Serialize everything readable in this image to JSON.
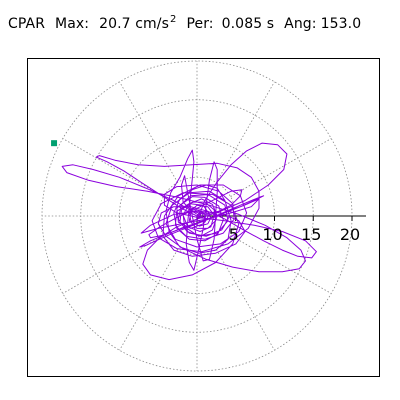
{
  "header": {
    "station": "CPAR",
    "max_label": "Max:",
    "max_value": "20.7 cm/s",
    "max_exp": "2",
    "per_label": "Per:",
    "per_value": "0.085 s",
    "ang_label": "Ang:",
    "ang_value": "153.0"
  },
  "chart_data": {
    "type": "line",
    "subtype": "polar-hodogram",
    "title": "CPAR  Max: 20.7 cm/s2  Per: 0.085 s  Ang: 153.0",
    "max_amplitude": 20.7,
    "period_s": 0.085,
    "angle_deg": 153.0,
    "rings": [
      5,
      10,
      15,
      20
    ],
    "tick_labels": [
      "5",
      "10",
      "15",
      "20"
    ],
    "radial_spokes_deg": [
      0,
      30,
      60,
      90,
      120,
      150,
      180,
      210,
      240,
      270,
      300,
      330
    ],
    "r_max": 20,
    "grid": true,
    "max_marker": {
      "r": 20.7,
      "angle_deg": 153.0
    },
    "colors": {
      "trace": "#8b00dd",
      "marker": "#00a070",
      "grid": "#888888",
      "axis": "#000000"
    },
    "series": [
      {
        "points": [
          [
            0,
            0
          ],
          [
            0.5,
            0.3
          ],
          [
            1.2,
            0.4
          ],
          [
            1.8,
            -0.2
          ],
          [
            1.4,
            -1
          ],
          [
            0.3,
            -1.3
          ],
          [
            -0.8,
            -0.6
          ],
          [
            -1,
            0.5
          ],
          [
            0,
            1.4
          ],
          [
            1.4,
            1.2
          ],
          [
            2.2,
            0.1
          ],
          [
            1.8,
            -1.4
          ],
          [
            0.4,
            -2
          ],
          [
            -1.2,
            -1.4
          ],
          [
            -1.8,
            0.1
          ],
          [
            -1,
            1.6
          ],
          [
            0.6,
            2.2
          ],
          [
            2,
            1.5
          ],
          [
            2.6,
            0
          ],
          [
            2,
            -1.8
          ],
          [
            0.5,
            -2.6
          ],
          [
            -1.3,
            -2
          ],
          [
            -2.4,
            -0.4
          ],
          [
            -2,
            1.5
          ],
          [
            -0.6,
            2.5
          ],
          [
            1,
            2.4
          ],
          [
            2.8,
            1.3
          ],
          [
            3.4,
            -0.5
          ],
          [
            2.7,
            -2.3
          ],
          [
            1,
            -3.2
          ],
          [
            -1,
            -3
          ],
          [
            -2.6,
            -1.6
          ],
          [
            -3,
            0.4
          ],
          [
            -2.2,
            2.2
          ],
          [
            -0.6,
            3.4
          ],
          [
            1.2,
            4
          ],
          [
            2.6,
            3.6
          ],
          [
            3.6,
            2
          ],
          [
            4.4,
            -0.6
          ],
          [
            4,
            -3
          ],
          [
            2.4,
            -4.4
          ],
          [
            0.2,
            -4.8
          ],
          [
            -2.2,
            -4
          ],
          [
            -3.6,
            -2
          ],
          [
            -4,
            0.6
          ],
          [
            -3.4,
            3
          ],
          [
            -2.2,
            5
          ],
          [
            -1.2,
            7.4
          ],
          [
            -0.6,
            8.5
          ],
          [
            -0.4,
            7
          ],
          [
            -0.6,
            4.8
          ],
          [
            -0.9,
            2
          ],
          [
            -1.2,
            -0.8
          ],
          [
            -1.4,
            -3.6
          ],
          [
            -1,
            -6
          ],
          [
            -0.4,
            -7
          ],
          [
            0.2,
            -4.4
          ],
          [
            0.8,
            -1.6
          ],
          [
            1.2,
            1.6
          ],
          [
            1.6,
            4.6
          ],
          [
            2.2,
            7
          ],
          [
            2.6,
            6
          ],
          [
            2.6,
            3
          ],
          [
            2.4,
            0.2
          ],
          [
            2.2,
            -3
          ],
          [
            1.6,
            -5.6
          ],
          [
            0.8,
            -5.8
          ],
          [
            0,
            -3
          ],
          [
            -0.6,
            0
          ],
          [
            -1.2,
            3
          ],
          [
            -1.6,
            5.2
          ],
          [
            -2,
            4
          ],
          [
            -1.8,
            1.8
          ],
          [
            -0.6,
            0.6
          ],
          [
            1,
            0.2
          ],
          [
            2.8,
            0.6
          ],
          [
            4.4,
            1.4
          ],
          [
            5.6,
            2.6
          ],
          [
            5.8,
            3.4
          ],
          [
            4.4,
            3.2
          ],
          [
            2.4,
            2.2
          ],
          [
            0,
            1
          ],
          [
            -2.6,
            -0.2
          ],
          [
            -4.8,
            -1.4
          ],
          [
            -6.2,
            -2.4
          ],
          [
            -6,
            -2.8
          ],
          [
            -4,
            -2.4
          ],
          [
            -1.6,
            -1.4
          ],
          [
            1,
            -0.6
          ],
          [
            3.4,
            0.4
          ],
          [
            5.6,
            1.2
          ],
          [
            7.4,
            2
          ],
          [
            8.6,
            2.6
          ],
          [
            8,
            2.4
          ],
          [
            5.6,
            1.4
          ],
          [
            2.4,
            0
          ],
          [
            -0.8,
            -1.2
          ],
          [
            -3.6,
            -2.2
          ],
          [
            -6,
            -3.2
          ],
          [
            -7.4,
            -4
          ],
          [
            -6.6,
            -3.8
          ],
          [
            -4,
            -2.6
          ],
          [
            -1,
            -1.4
          ],
          [
            2,
            -0.2
          ],
          [
            4.6,
            0.8
          ],
          [
            6.6,
            1.6
          ],
          [
            8,
            2.2
          ],
          [
            7,
            1.2
          ],
          [
            4.4,
            0.4
          ],
          [
            1.2,
            -0.4
          ],
          [
            -2,
            -1
          ],
          [
            -5,
            -1.6
          ],
          [
            -7.2,
            -2.2
          ],
          [
            -6,
            -1.2
          ],
          [
            -3,
            0.2
          ],
          [
            0,
            0.6
          ],
          [
            3,
            0.4
          ],
          [
            5.4,
            -0.6
          ],
          [
            6.2,
            -2
          ],
          [
            5,
            -3.6
          ],
          [
            2.4,
            -4.8
          ],
          [
            -0.6,
            -5.2
          ],
          [
            -3,
            -4.4
          ],
          [
            -4.4,
            -2.6
          ],
          [
            -4.2,
            0
          ],
          [
            -2.4,
            2.6
          ],
          [
            0.4,
            4
          ],
          [
            3.4,
            4
          ],
          [
            5.6,
            2.6
          ],
          [
            6.4,
            0.4
          ],
          [
            5.4,
            -2
          ],
          [
            3,
            -3.6
          ],
          [
            0,
            -4
          ],
          [
            -2.8,
            -3
          ],
          [
            -4,
            -1
          ],
          [
            -3.2,
            1.4
          ],
          [
            -1,
            3
          ],
          [
            1.6,
            3.2
          ],
          [
            3.6,
            2
          ],
          [
            4.2,
            0
          ],
          [
            3.2,
            -1.8
          ],
          [
            1.2,
            -2.6
          ],
          [
            -1,
            -2.2
          ],
          [
            -2.2,
            -0.8
          ],
          [
            -2,
            0.8
          ],
          [
            -0.6,
            1.8
          ],
          [
            1,
            1.8
          ],
          [
            2.2,
            0.8
          ],
          [
            2.4,
            -0.6
          ],
          [
            1.4,
            -1.6
          ],
          [
            0,
            -1.6
          ],
          [
            -1,
            -0.6
          ],
          [
            -0.8,
            0.4
          ],
          [
            0,
            0.8
          ],
          [
            0.8,
            0.4
          ],
          [
            0.6,
            -0.2
          ],
          [
            0,
            0
          ],
          [
            -2,
            1
          ],
          [
            -4.5,
            2.6
          ],
          [
            -7,
            4.2
          ],
          [
            -9.4,
            5.8
          ],
          [
            -11.6,
            7
          ],
          [
            -13,
            7.6
          ],
          [
            -12.6,
            7.8
          ],
          [
            -10.6,
            7.2
          ],
          [
            -7.6,
            6.6
          ],
          [
            -4.2,
            6.4
          ],
          [
            -0.6,
            6.6
          ],
          [
            2.6,
            6.8
          ],
          [
            5.2,
            6.2
          ],
          [
            7,
            5
          ],
          [
            8,
            3.2
          ],
          [
            8,
            1
          ],
          [
            6.6,
            -1.6
          ],
          [
            4,
            -3.6
          ],
          [
            0.6,
            -4.6
          ],
          [
            -2.6,
            -4.2
          ],
          [
            -5,
            -2.8
          ],
          [
            -5.8,
            -0.6
          ],
          [
            -4.6,
            1.6
          ],
          [
            -1.8,
            3
          ],
          [
            1.4,
            2.8
          ],
          [
            3.6,
            1.4
          ],
          [
            4,
            -0.6
          ],
          [
            2.6,
            -2.2
          ],
          [
            0.2,
            -2.6
          ],
          [
            -1.6,
            -1.4
          ],
          [
            -1.8,
            0.2
          ],
          [
            -0.6,
            1
          ],
          [
            0.6,
            0.6
          ],
          [
            0.4,
            0
          ],
          [
            -3,
            2
          ],
          [
            -6.6,
            3.6
          ],
          [
            -10,
            5
          ],
          [
            -13.4,
            6
          ],
          [
            -16,
            6.6
          ],
          [
            -17.4,
            6.4
          ],
          [
            -16.8,
            5.6
          ],
          [
            -14,
            4.6
          ],
          [
            -10.4,
            3.8
          ],
          [
            -6.4,
            3.2
          ],
          [
            -2.4,
            2.4
          ],
          [
            1.6,
            1.4
          ],
          [
            5.4,
            0.2
          ],
          [
            8.8,
            -1.2
          ],
          [
            11.6,
            -2.8
          ],
          [
            13.4,
            -4.4
          ],
          [
            14,
            -5.8
          ],
          [
            13.2,
            -6.8
          ],
          [
            11,
            -7.2
          ],
          [
            8,
            -7.2
          ],
          [
            4.6,
            -6.6
          ],
          [
            1.2,
            -5.6
          ],
          [
            -1.8,
            -4.2
          ],
          [
            -4,
            -2.6
          ],
          [
            -5,
            -1
          ],
          [
            -4.6,
            0.4
          ],
          [
            -3,
            1.2
          ],
          [
            -0.8,
            1.2
          ],
          [
            1.4,
            0.6
          ],
          [
            3.6,
            -0.4
          ],
          [
            6,
            -1.8
          ],
          [
            8.6,
            -3.2
          ],
          [
            11,
            -4.4
          ],
          [
            13,
            -5.2
          ],
          [
            14.8,
            -5.4
          ],
          [
            15.4,
            -4.6
          ],
          [
            14,
            -3.2
          ],
          [
            11,
            -2
          ],
          [
            7.4,
            -1.2
          ],
          [
            3.6,
            -0.6
          ],
          [
            0.2,
            -0.2
          ],
          [
            -2.6,
            0.4
          ],
          [
            -4.2,
            1.4
          ],
          [
            -4.2,
            2.8
          ],
          [
            -2.6,
            3.8
          ],
          [
            0,
            4
          ],
          [
            2.8,
            3.2
          ],
          [
            4.6,
            1.6
          ],
          [
            4.8,
            -0.4
          ],
          [
            3.4,
            -2.2
          ],
          [
            1,
            -3
          ],
          [
            -1.4,
            -2.6
          ],
          [
            -2.8,
            -1.2
          ],
          [
            -2.6,
            0.6
          ],
          [
            -1,
            1.6
          ],
          [
            0.8,
            1.4
          ],
          [
            1.6,
            0.2
          ],
          [
            1,
            -0.8
          ],
          [
            0,
            -0.6
          ],
          [
            1,
            2
          ],
          [
            2.6,
            4.4
          ],
          [
            4.4,
            6.6
          ],
          [
            6.4,
            8.4
          ],
          [
            8.4,
            9.4
          ],
          [
            10.4,
            9.2
          ],
          [
            11.6,
            8
          ],
          [
            11.2,
            6
          ],
          [
            9.2,
            4
          ],
          [
            6.2,
            2
          ],
          [
            3,
            0.6
          ],
          [
            0,
            -0.4
          ],
          [
            -2.6,
            -1.4
          ],
          [
            -4.8,
            -2.8
          ],
          [
            -6.4,
            -4.4
          ],
          [
            -7,
            -6.2
          ],
          [
            -6,
            -7.6
          ],
          [
            -3.6,
            -8.2
          ],
          [
            -0.6,
            -7.6
          ],
          [
            2.4,
            -6
          ],
          [
            4.6,
            -3.6
          ],
          [
            5.4,
            -1
          ],
          [
            4.4,
            1.4
          ],
          [
            2,
            2.8
          ],
          [
            -0.8,
            2.6
          ],
          [
            -2.6,
            1
          ],
          [
            -2.4,
            -0.8
          ],
          [
            -0.8,
            -1.6
          ],
          [
            0.8,
            -1
          ],
          [
            1.2,
            0.2
          ],
          [
            0.4,
            0.6
          ],
          [
            0,
            0
          ]
        ]
      }
    ]
  }
}
